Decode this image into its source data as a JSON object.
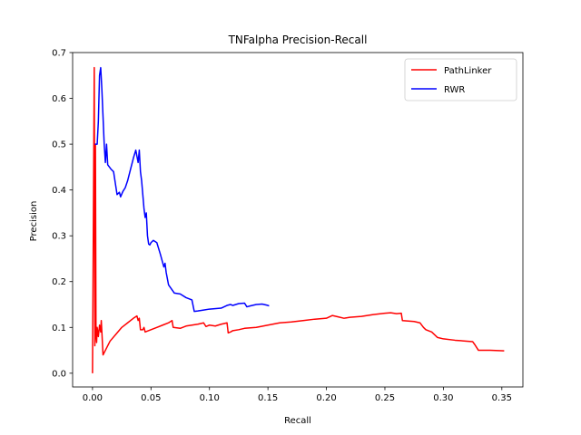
{
  "chart_data": {
    "type": "line",
    "title": "TNFalpha Precision-Recall",
    "xlabel": "Recall",
    "ylabel": "Precision",
    "xlim": [
      -0.017,
      0.368
    ],
    "ylim": [
      -0.03,
      0.7
    ],
    "xticks": [
      0.0,
      0.05,
      0.1,
      0.15,
      0.2,
      0.25,
      0.3,
      0.35
    ],
    "xtick_labels": [
      "0.00",
      "0.05",
      "0.10",
      "0.15",
      "0.20",
      "0.25",
      "0.30",
      "0.35"
    ],
    "yticks": [
      0.0,
      0.1,
      0.2,
      0.3,
      0.4,
      0.5,
      0.6,
      0.7
    ],
    "ytick_labels": [
      "0.0",
      "0.1",
      "0.2",
      "0.3",
      "0.4",
      "0.5",
      "0.6",
      "0.7"
    ],
    "grid": false,
    "legend_position": "top-right",
    "series": [
      {
        "name": "PathLinker",
        "color": "#ff0000",
        "x": [
          0.0,
          0.0015,
          0.002,
          0.0025,
          0.003,
          0.0035,
          0.004,
          0.005,
          0.006,
          0.007,
          0.0075,
          0.009,
          0.012,
          0.015,
          0.02,
          0.025,
          0.03,
          0.035,
          0.038,
          0.039,
          0.04,
          0.041,
          0.043,
          0.044,
          0.045,
          0.05,
          0.055,
          0.06,
          0.065,
          0.068,
          0.069,
          0.075,
          0.08,
          0.085,
          0.09,
          0.095,
          0.097,
          0.1,
          0.105,
          0.11,
          0.115,
          0.116,
          0.118,
          0.12,
          0.125,
          0.13,
          0.14,
          0.15,
          0.16,
          0.17,
          0.18,
          0.19,
          0.2,
          0.205,
          0.21,
          0.215,
          0.22,
          0.23,
          0.24,
          0.25,
          0.255,
          0.26,
          0.264,
          0.265,
          0.275,
          0.28,
          0.283,
          0.285,
          0.29,
          0.295,
          0.3,
          0.31,
          0.32,
          0.325,
          0.327,
          0.33,
          0.34,
          0.352
        ],
        "y": [
          0.0,
          0.667,
          0.06,
          0.5,
          0.08,
          0.067,
          0.1,
          0.08,
          0.105,
          0.09,
          0.115,
          0.04,
          0.055,
          0.07,
          0.085,
          0.1,
          0.11,
          0.12,
          0.125,
          0.115,
          0.12,
          0.095,
          0.095,
          0.1,
          0.09,
          0.095,
          0.1,
          0.105,
          0.11,
          0.115,
          0.1,
          0.098,
          0.103,
          0.105,
          0.107,
          0.11,
          0.102,
          0.105,
          0.103,
          0.107,
          0.11,
          0.088,
          0.09,
          0.093,
          0.095,
          0.098,
          0.1,
          0.105,
          0.11,
          0.112,
          0.115,
          0.118,
          0.12,
          0.126,
          0.123,
          0.12,
          0.122,
          0.124,
          0.128,
          0.131,
          0.132,
          0.13,
          0.131,
          0.115,
          0.113,
          0.11,
          0.1,
          0.095,
          0.09,
          0.078,
          0.075,
          0.072,
          0.07,
          0.069,
          0.062,
          0.05,
          0.05,
          0.049
        ]
      },
      {
        "name": "RWR",
        "color": "#0000ff",
        "x": [
          0.002,
          0.004,
          0.005,
          0.006,
          0.007,
          0.008,
          0.01,
          0.011,
          0.012,
          0.013,
          0.016,
          0.018,
          0.021,
          0.023,
          0.024,
          0.026,
          0.028,
          0.03,
          0.033,
          0.035,
          0.037,
          0.039,
          0.04,
          0.041,
          0.042,
          0.044,
          0.045,
          0.046,
          0.047,
          0.048,
          0.049,
          0.05,
          0.052,
          0.055,
          0.058,
          0.061,
          0.062,
          0.063,
          0.065,
          0.07,
          0.075,
          0.08,
          0.085,
          0.087,
          0.09,
          0.095,
          0.1,
          0.11,
          0.115,
          0.118,
          0.12,
          0.125,
          0.13,
          0.132,
          0.135,
          0.14,
          0.145,
          0.15,
          0.151
        ],
        "y": [
          0.5,
          0.5,
          0.55,
          0.65,
          0.667,
          0.62,
          0.5,
          0.46,
          0.5,
          0.455,
          0.445,
          0.44,
          0.39,
          0.395,
          0.385,
          0.397,
          0.405,
          0.42,
          0.45,
          0.47,
          0.487,
          0.46,
          0.487,
          0.44,
          0.42,
          0.36,
          0.34,
          0.35,
          0.3,
          0.282,
          0.28,
          0.285,
          0.29,
          0.285,
          0.26,
          0.232,
          0.24,
          0.22,
          0.193,
          0.175,
          0.173,
          0.165,
          0.16,
          0.135,
          0.136,
          0.138,
          0.14,
          0.142,
          0.148,
          0.15,
          0.148,
          0.152,
          0.153,
          0.145,
          0.147,
          0.15,
          0.151,
          0.148,
          0.147
        ]
      }
    ]
  }
}
